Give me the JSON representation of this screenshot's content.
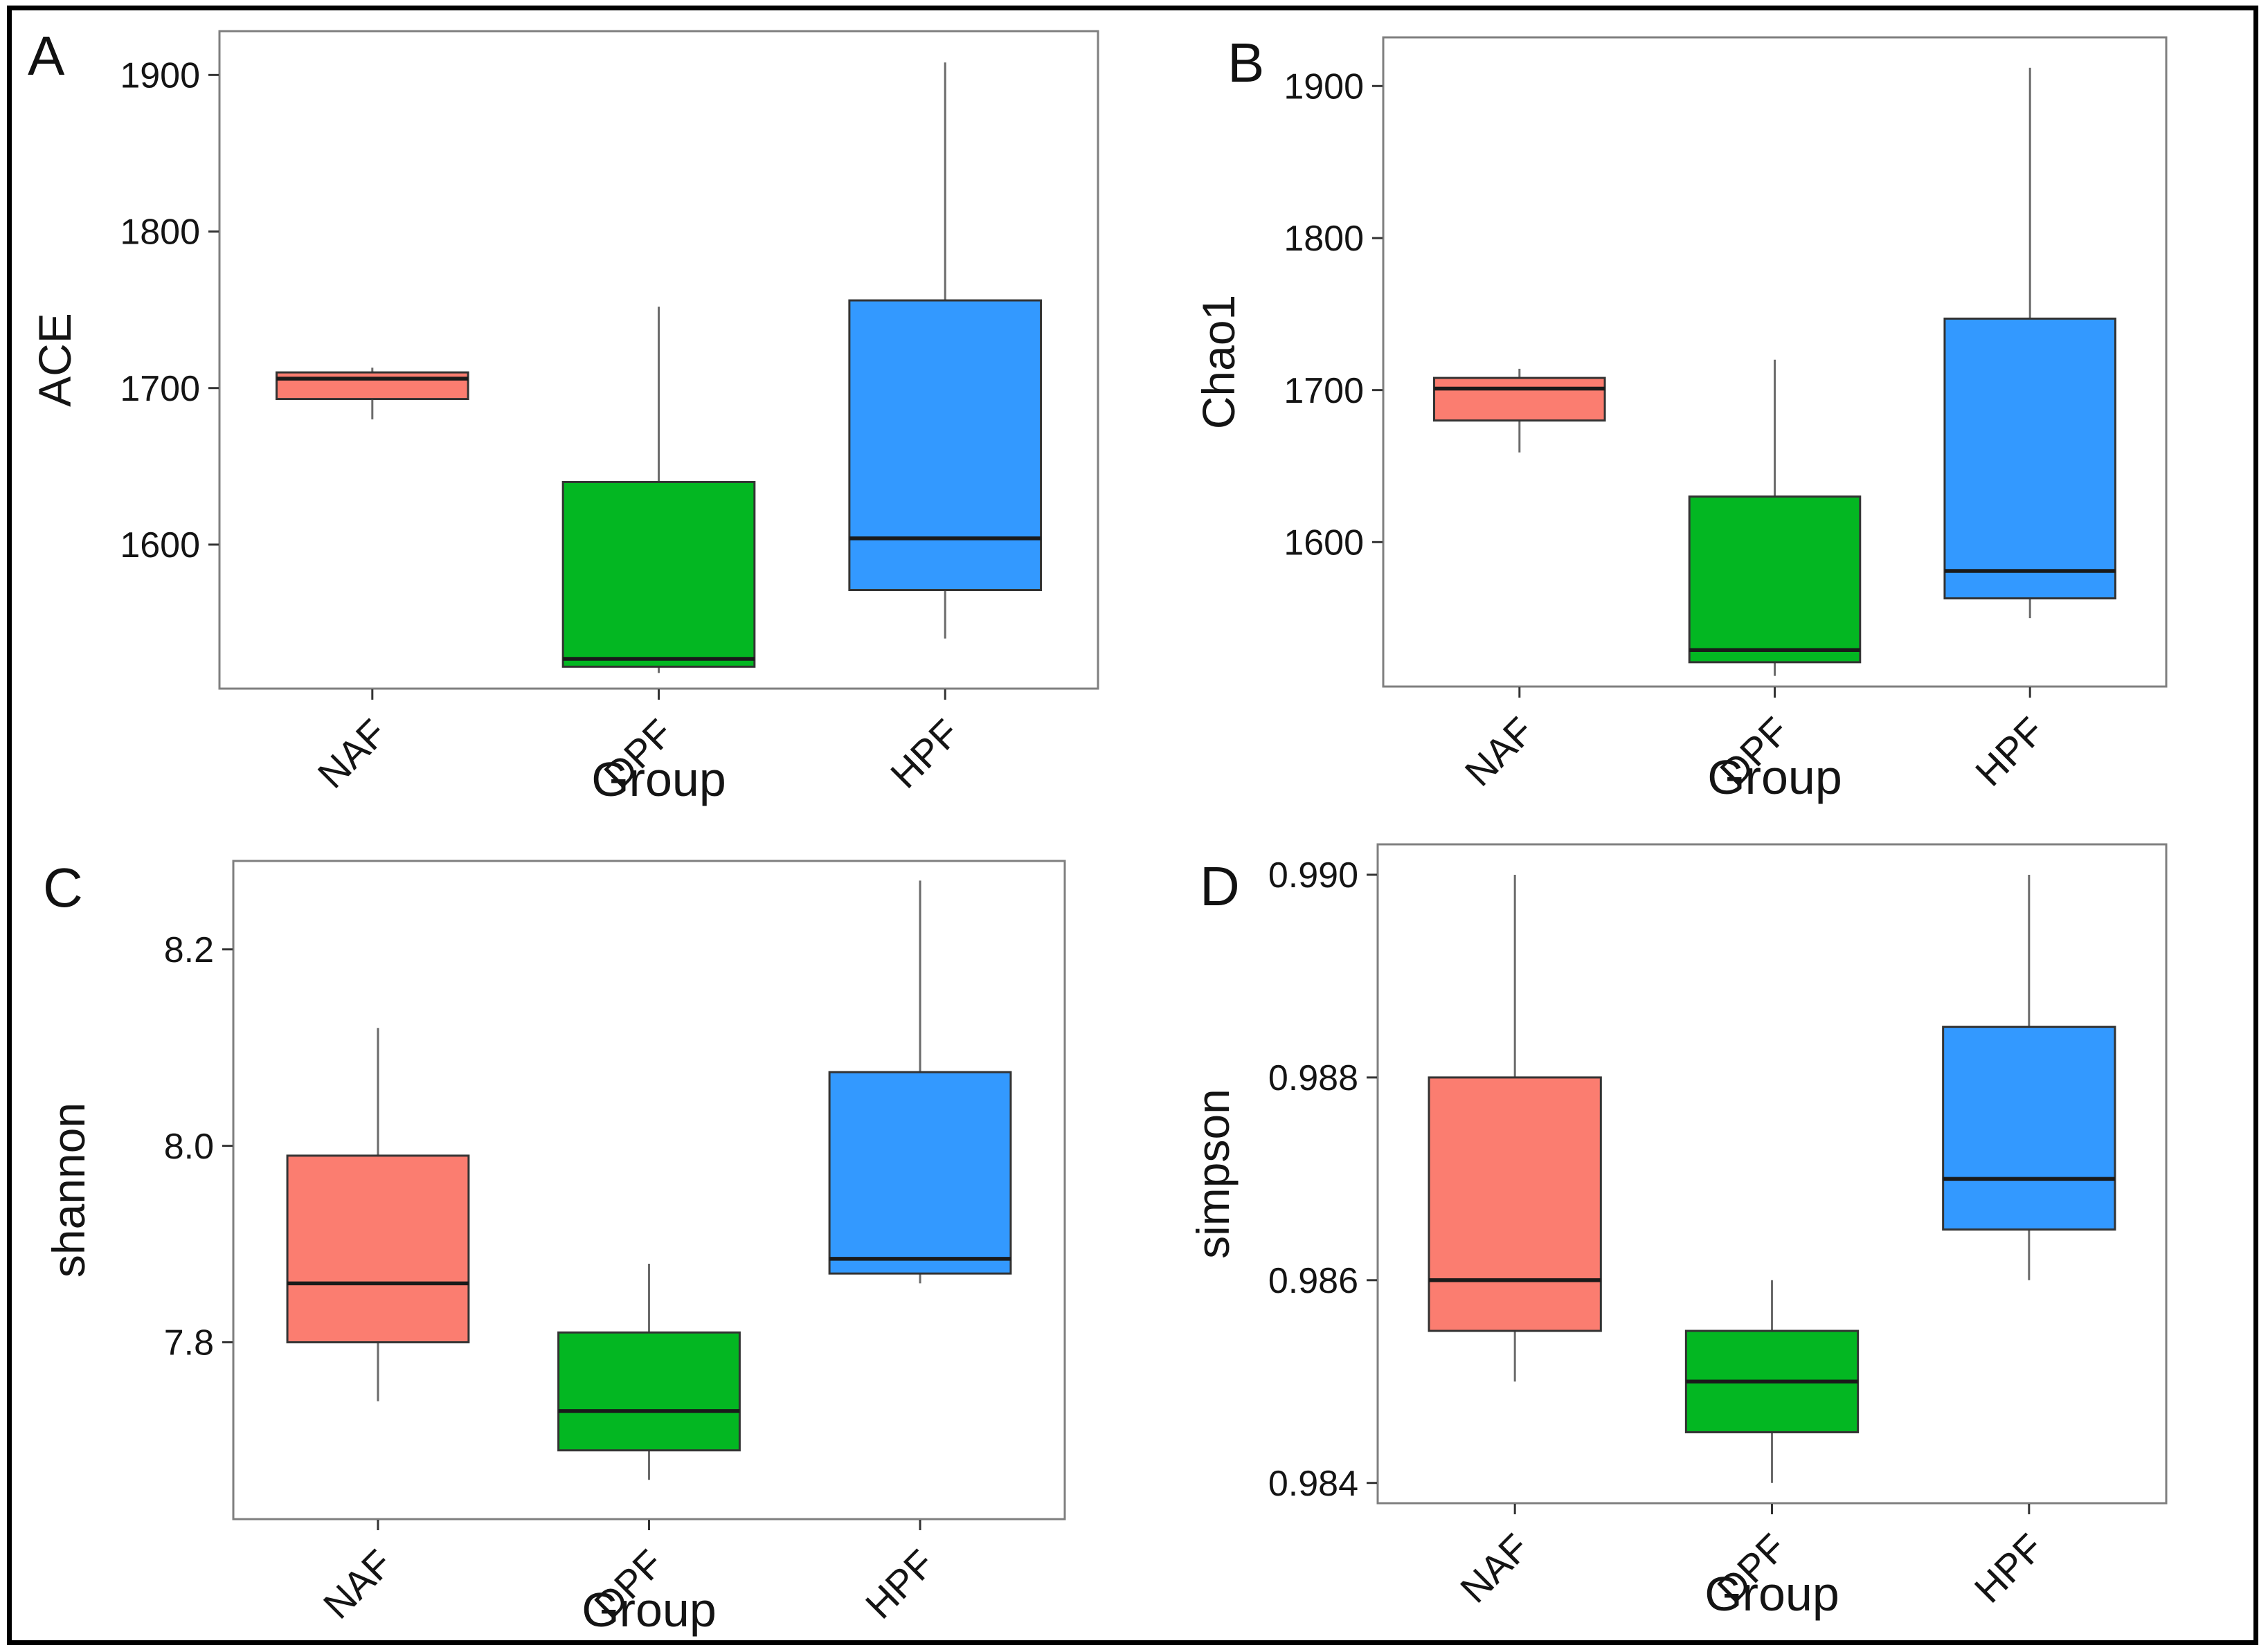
{
  "figure": {
    "description": "Four-panel alpha diversity boxplot figure comparing three groups",
    "panel_letters": [
      "A",
      "B",
      "C",
      "D"
    ],
    "group_colors": {
      "NAF": "#FB7D70",
      "DPF": "#03B722",
      "HPF": "#3399FF"
    }
  },
  "chart_data": [
    {
      "type": "box",
      "panel_label": "A",
      "title": "",
      "xlabel": "Group",
      "ylabel": "ACE",
      "categories": [
        "NAF",
        "DPF",
        "HPF"
      ],
      "ylim": [
        1508,
        1928
      ],
      "yticks": [
        1600,
        1700,
        1800,
        1900
      ],
      "ytick_labels": [
        "1600",
        "1700",
        "1800",
        "1900"
      ],
      "grid": false,
      "legend": "none",
      "series": [
        {
          "name": "NAF",
          "color": "#FB7D70",
          "whisker_low": 1680,
          "q1": 1693,
          "median": 1706,
          "q3": 1710,
          "whisker_high": 1713
        },
        {
          "name": "DPF",
          "color": "#03B722",
          "whisker_low": 1518,
          "q1": 1522,
          "median": 1527,
          "q3": 1640,
          "whisker_high": 1752
        },
        {
          "name": "HPF",
          "color": "#3399FF",
          "whisker_low": 1540,
          "q1": 1571,
          "median": 1604,
          "q3": 1756,
          "whisker_high": 1908
        }
      ]
    },
    {
      "type": "box",
      "panel_label": "B",
      "title": "",
      "xlabel": "Group",
      "ylabel": "Chao1",
      "categories": [
        "NAF",
        "DPF",
        "HPF"
      ],
      "ylim": [
        1505,
        1932
      ],
      "yticks": [
        1600,
        1700,
        1800,
        1900
      ],
      "ytick_labels": [
        "1600",
        "1700",
        "1800",
        "1900"
      ],
      "grid": false,
      "legend": "none",
      "series": [
        {
          "name": "NAF",
          "color": "#FB7D70",
          "whisker_low": 1659,
          "q1": 1680,
          "median": 1701,
          "q3": 1708,
          "whisker_high": 1714
        },
        {
          "name": "DPF",
          "color": "#03B722",
          "whisker_low": 1512,
          "q1": 1521,
          "median": 1529,
          "q3": 1630,
          "whisker_high": 1720
        },
        {
          "name": "HPF",
          "color": "#3399FF",
          "whisker_low": 1550,
          "q1": 1563,
          "median": 1581,
          "q3": 1747,
          "whisker_high": 1912
        }
      ]
    },
    {
      "type": "box",
      "panel_label": "C",
      "title": "",
      "xlabel": "Group",
      "ylabel": "shannon",
      "categories": [
        "NAF",
        "DPF",
        "HPF"
      ],
      "ylim": [
        7.62,
        8.29
      ],
      "yticks": [
        7.8,
        8.0,
        8.2
      ],
      "ytick_labels": [
        "7.8",
        "8.0",
        "8.2"
      ],
      "grid": false,
      "legend": "none",
      "series": [
        {
          "name": "NAF",
          "color": "#FB7D70",
          "whisker_low": 7.74,
          "q1": 7.8,
          "median": 7.86,
          "q3": 7.99,
          "whisker_high": 8.12
        },
        {
          "name": "DPF",
          "color": "#03B722",
          "whisker_low": 7.66,
          "q1": 7.69,
          "median": 7.73,
          "q3": 7.81,
          "whisker_high": 7.88
        },
        {
          "name": "HPF",
          "color": "#3399FF",
          "whisker_low": 7.86,
          "q1": 7.87,
          "median": 7.885,
          "q3": 8.075,
          "whisker_high": 8.27
        }
      ]
    },
    {
      "type": "box",
      "panel_label": "D",
      "title": "",
      "xlabel": "Group",
      "ylabel": "simpson",
      "categories": [
        "NAF",
        "DPF",
        "HPF"
      ],
      "ylim": [
        0.9838,
        0.9903
      ],
      "yticks": [
        0.984,
        0.986,
        0.988,
        0.99
      ],
      "ytick_labels": [
        "0.984",
        "0.986",
        "0.988",
        "0.990"
      ],
      "grid": false,
      "legend": "none",
      "series": [
        {
          "name": "NAF",
          "color": "#FB7D70",
          "whisker_low": 0.985,
          "q1": 0.9855,
          "median": 0.986,
          "q3": 0.988,
          "whisker_high": 0.99
        },
        {
          "name": "DPF",
          "color": "#03B722",
          "whisker_low": 0.984,
          "q1": 0.9845,
          "median": 0.985,
          "q3": 0.9855,
          "whisker_high": 0.986
        },
        {
          "name": "HPF",
          "color": "#3399FF",
          "whisker_low": 0.986,
          "q1": 0.9865,
          "median": 0.987,
          "q3": 0.9885,
          "whisker_high": 0.99
        }
      ]
    }
  ]
}
